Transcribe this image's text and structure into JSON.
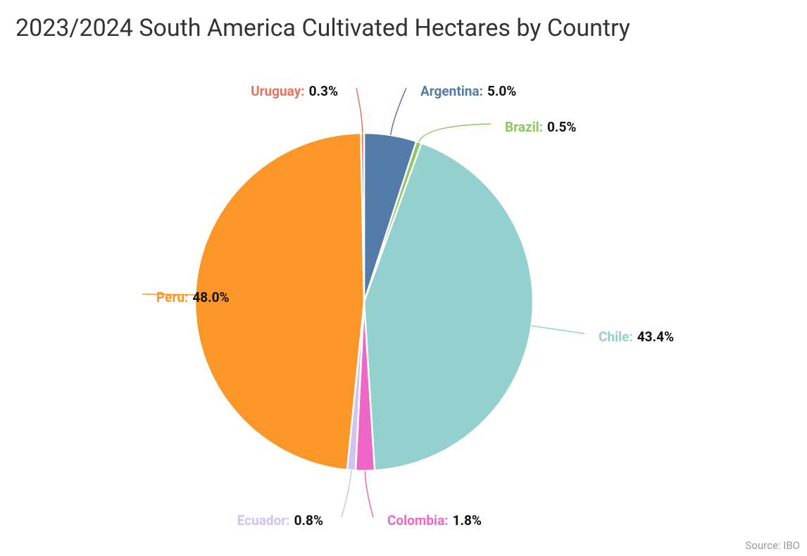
{
  "chart_data": {
    "type": "pie",
    "title": "2023/2024 South America Cultivated Hectares by Country",
    "categories": [
      "Argentina:",
      "Brazil:",
      "Chile:",
      "Colombia:",
      "Ecuador:",
      "Peru:",
      "Uruguay:"
    ],
    "values": [
      5.0,
      0.5,
      43.4,
      1.8,
      0.8,
      48.0,
      0.3
    ],
    "value_labels": [
      "5.0%",
      "0.5%",
      "43.4%",
      "1.8%",
      "0.8%",
      "48.0%",
      "0.3%"
    ],
    "colors": [
      "#537ba8",
      "#8dc763",
      "#93d0ce",
      "#ef67c6",
      "#d0c3f0",
      "#fb9629",
      "#e8735c"
    ],
    "source": "Source: IBO"
  }
}
